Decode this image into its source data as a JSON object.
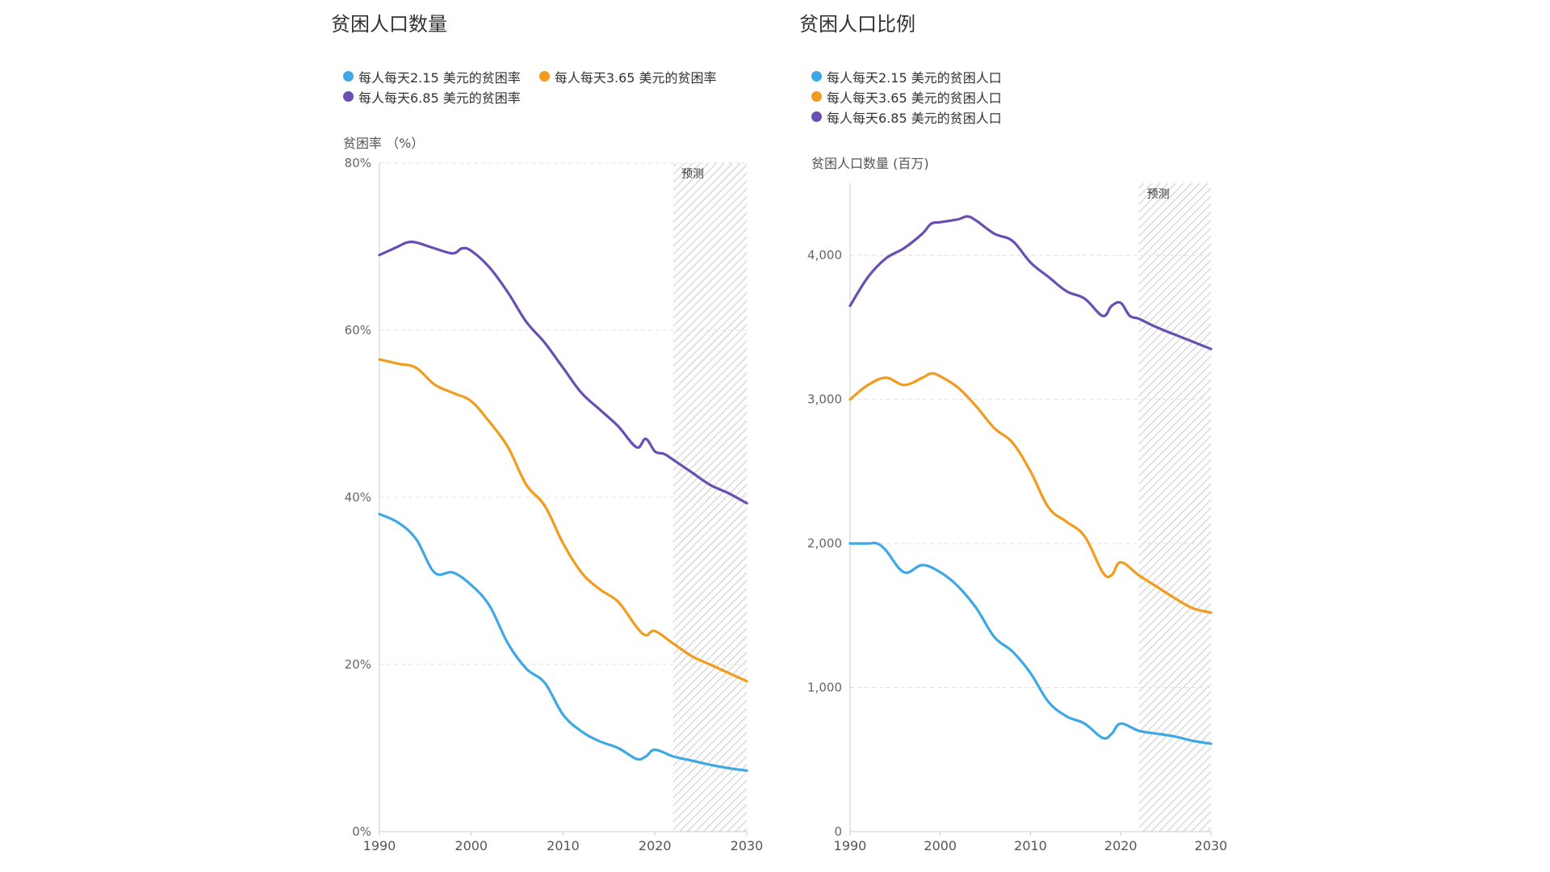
{
  "colors": {
    "s215": "#3ea8e5",
    "s365": "#f29b1c",
    "s685": "#6a4fb3",
    "grid": "#e2e2e2",
    "axis": "#cccccc",
    "hatch": "#bbbbbb"
  },
  "chart_data": [
    {
      "type": "line",
      "title": "贫困人口数量",
      "ylabel": "贫困率 （%）",
      "ylim": [
        0,
        80
      ],
      "yticks": [
        0,
        20,
        40,
        60,
        80
      ],
      "ytick_labels": [
        "0%",
        "20%",
        "40%",
        "60%",
        "80%"
      ],
      "xlim": [
        1990,
        2030
      ],
      "xticks": [
        1990,
        2000,
        2010,
        2020,
        2030
      ],
      "xtick_labels": [
        "1990",
        "2000",
        "2010",
        "2020",
        "2030"
      ],
      "grid": true,
      "legend_position": "top-left",
      "forecast": {
        "label": "预测",
        "from": 2022,
        "to": 2030
      },
      "series": [
        {
          "name": "每人每天2.15 美元的贫困率",
          "color_key": "s215",
          "x": [
            1990,
            1992,
            1994,
            1996,
            1998,
            2000,
            2002,
            2004,
            2006,
            2008,
            2010,
            2012,
            2014,
            2016,
            2018,
            2019,
            2020,
            2022,
            2024,
            2026,
            2028,
            2030
          ],
          "y": [
            38,
            37,
            35,
            31,
            31,
            29.5,
            27,
            22.5,
            19.5,
            17.8,
            14,
            12,
            10.8,
            10,
            8.7,
            9,
            9.8,
            9,
            8.5,
            8,
            7.6,
            7.3
          ]
        },
        {
          "name": "每人每天3.65 美元的贫困率",
          "color_key": "s365",
          "x": [
            1990,
            1992,
            1994,
            1996,
            1998,
            2000,
            2002,
            2004,
            2006,
            2008,
            2010,
            2012,
            2014,
            2016,
            2018,
            2019,
            2020,
            2022,
            2024,
            2026,
            2028,
            2030
          ],
          "y": [
            56.5,
            56,
            55.5,
            53.5,
            52.5,
            51.5,
            49,
            46,
            41.5,
            39,
            34.5,
            31,
            29,
            27.5,
            24.5,
            23.5,
            24,
            22.5,
            21,
            20,
            19,
            18
          ]
        },
        {
          "name": "每人每天6.85 美元的贫困率",
          "color_key": "s685",
          "x": [
            1990,
            1992,
            1993,
            1994,
            1996,
            1998,
            1999,
            2000,
            2002,
            2004,
            2006,
            2008,
            2010,
            2012,
            2014,
            2016,
            2018,
            2019,
            2020,
            2021,
            2022,
            2024,
            2026,
            2028,
            2030
          ],
          "y": [
            69,
            70,
            70.5,
            70.5,
            69.8,
            69.2,
            69.8,
            69.5,
            67.5,
            64.5,
            61,
            58.5,
            55.5,
            52.5,
            50.5,
            48.5,
            46,
            47,
            45.5,
            45.2,
            44.5,
            43,
            41.5,
            40.5,
            39.3
          ]
        }
      ]
    },
    {
      "type": "line",
      "title": "贫困人口比例",
      "ylabel": "贫困人口数量 (百万)",
      "ylim": [
        0,
        4500
      ],
      "yticks": [
        0,
        1000,
        2000,
        3000,
        4000
      ],
      "ytick_labels": [
        "0",
        "1,000",
        "2,000",
        "3,000",
        "4,000"
      ],
      "xlim": [
        1990,
        2030
      ],
      "xticks": [
        1990,
        2000,
        2010,
        2020,
        2030
      ],
      "xtick_labels": [
        "1990",
        "2000",
        "2010",
        "2020",
        "2030"
      ],
      "grid": true,
      "legend_position": "top-left",
      "forecast": {
        "label": "预测",
        "from": 2022,
        "to": 2030
      },
      "series": [
        {
          "name": "每人每天2.15 美元的贫困人口",
          "color_key": "s215",
          "x": [
            1990,
            1992,
            1993,
            1994,
            1996,
            1998,
            2000,
            2002,
            2004,
            2006,
            2008,
            2010,
            2012,
            2014,
            2016,
            2018,
            2019,
            2020,
            2022,
            2024,
            2026,
            2028,
            2030
          ],
          "y": [
            2000,
            2000,
            2000,
            1950,
            1800,
            1850,
            1800,
            1700,
            1550,
            1350,
            1250,
            1100,
            900,
            800,
            750,
            650,
            680,
            750,
            700,
            680,
            660,
            630,
            610
          ]
        },
        {
          "name": "每人每天3.65 美元的贫困人口",
          "color_key": "s365",
          "x": [
            1990,
            1992,
            1994,
            1996,
            1998,
            1999,
            2000,
            2002,
            2004,
            2006,
            2008,
            2010,
            2012,
            2014,
            2016,
            2018,
            2019,
            2020,
            2022,
            2024,
            2026,
            2028,
            2030
          ],
          "y": [
            3000,
            3100,
            3150,
            3100,
            3150,
            3180,
            3160,
            3080,
            2950,
            2800,
            2700,
            2500,
            2250,
            2150,
            2050,
            1800,
            1780,
            1870,
            1780,
            1700,
            1620,
            1550,
            1520
          ]
        },
        {
          "name": "每人每天6.85 美元的贫困人口",
          "color_key": "s685",
          "x": [
            1990,
            1992,
            1994,
            1996,
            1998,
            1999,
            2000,
            2002,
            2003,
            2004,
            2006,
            2008,
            2010,
            2012,
            2014,
            2016,
            2018,
            2019,
            2020,
            2021,
            2022,
            2024,
            2026,
            2028,
            2030
          ],
          "y": [
            3650,
            3850,
            3980,
            4050,
            4150,
            4220,
            4230,
            4250,
            4270,
            4240,
            4150,
            4100,
            3950,
            3850,
            3750,
            3700,
            3580,
            3650,
            3670,
            3580,
            3560,
            3500,
            3450,
            3400,
            3350
          ]
        }
      ]
    }
  ]
}
